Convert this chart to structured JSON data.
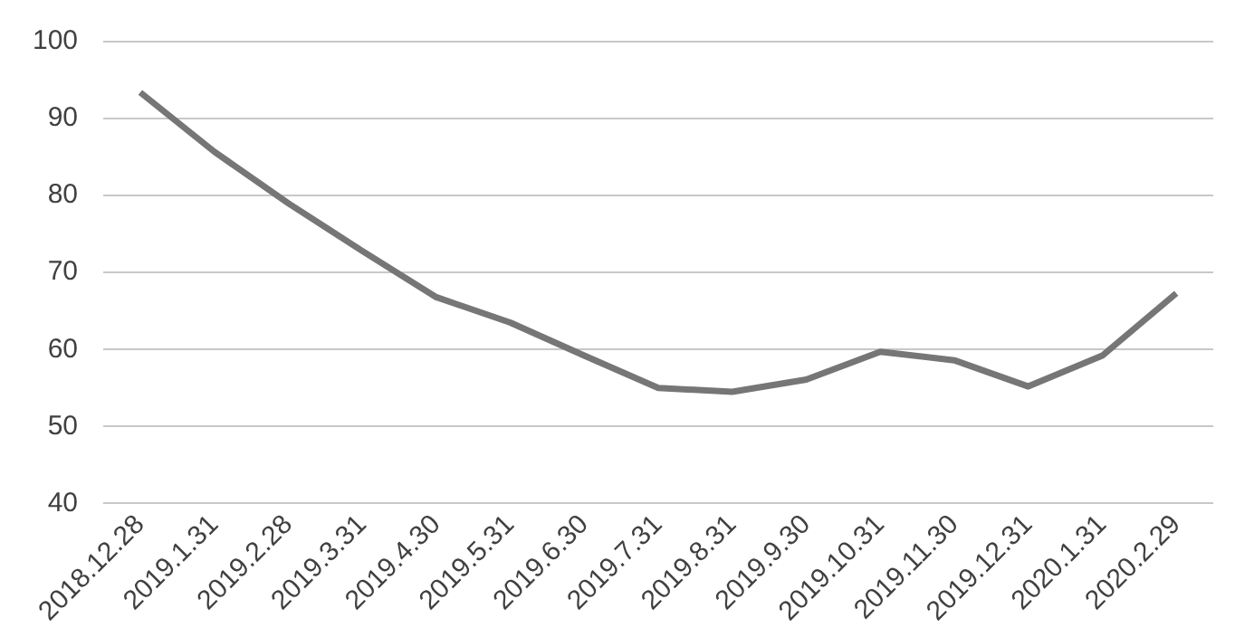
{
  "chart_data": {
    "type": "line",
    "categories": [
      "2018.12.28",
      "2019.1.31",
      "2019.2.28",
      "2019.3.31",
      "2019.4.30",
      "2019.5.31",
      "2019.6.30",
      "2019.7.31",
      "2019.8.31",
      "2019.9.30",
      "2019.10.31",
      "2019.11.30",
      "2019.12.31",
      "2020.1.31",
      "2020.2.29"
    ],
    "series": [
      {
        "color": "#767676",
        "values": [
          93.4,
          85.7,
          79.0,
          72.8,
          66.8,
          63.5,
          59.2,
          55.0,
          54.5,
          56.1,
          59.7,
          58.6,
          55.2,
          59.2,
          67.3
        ]
      }
    ],
    "ylim": [
      40,
      100
    ],
    "yticks": [
      40,
      50,
      60,
      70,
      80,
      90,
      100
    ],
    "grid": "y",
    "legend": false,
    "marker": "none",
    "line_style": "solid"
  }
}
